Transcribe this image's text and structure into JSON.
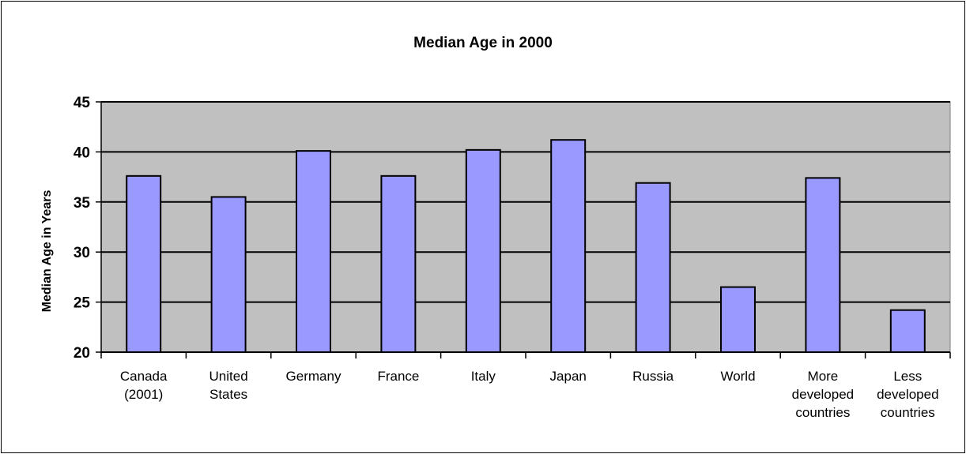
{
  "chart_data": {
    "type": "bar",
    "title": "Median Age in 2000",
    "xlabel": "",
    "ylabel": "Median Age in Years",
    "ylim": [
      20,
      45
    ],
    "yticks": [
      20,
      25,
      30,
      35,
      40,
      45
    ],
    "grid": true,
    "legend": "none",
    "categories": [
      [
        "Canada",
        "(2001)"
      ],
      [
        "United",
        "States"
      ],
      [
        "Germany"
      ],
      [
        "France"
      ],
      [
        "Italy"
      ],
      [
        "Japan"
      ],
      [
        "Russia"
      ],
      [
        "World"
      ],
      [
        "More",
        "developed",
        "countries"
      ],
      [
        "Less",
        "developed",
        "countries"
      ]
    ],
    "values": [
      37.6,
      35.5,
      40.1,
      37.6,
      40.2,
      41.2,
      36.9,
      26.5,
      37.4,
      24.2
    ],
    "colors": {
      "bar": "#9999ff",
      "plot_bg": "#c0c0c0",
      "gridline": "#000000"
    }
  }
}
